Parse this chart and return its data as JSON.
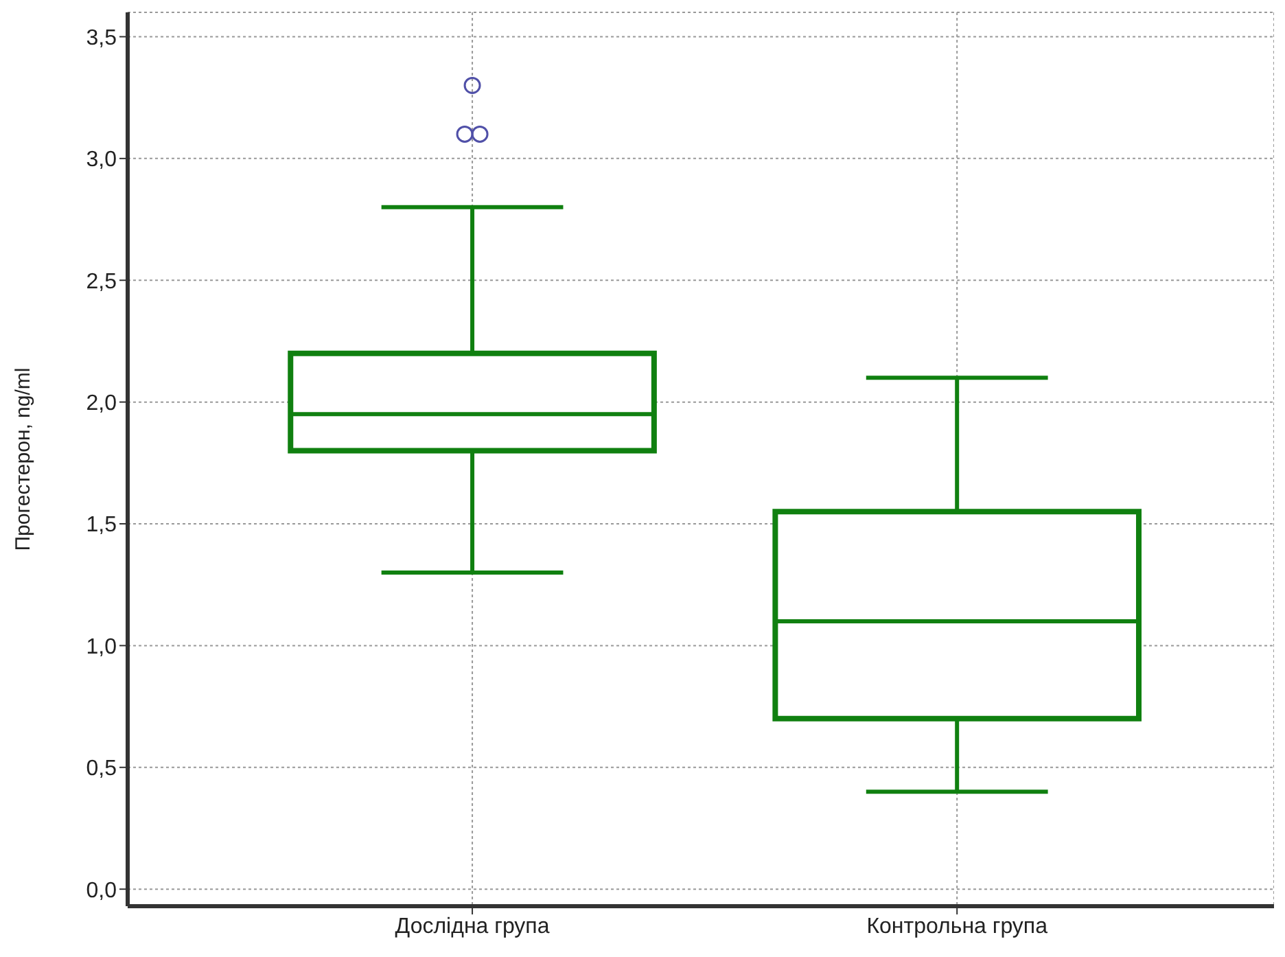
{
  "chart_data": {
    "type": "box",
    "ylabel": "Прогестерон, ng/ml",
    "categories": [
      "Дослідна група",
      "Контрольна група"
    ],
    "series": [
      {
        "color": "#108010",
        "boxes": [
          {
            "low": 1.3,
            "q1": 1.8,
            "median": 1.95,
            "q3": 2.2,
            "high": 2.8,
            "outliers": [
              3.3,
              3.1,
              3.1
            ]
          },
          {
            "low": 0.4,
            "q1": 0.7,
            "median": 1.1,
            "q3": 1.55,
            "high": 2.1
          }
        ]
      }
    ],
    "ylim": [
      -0.07,
      3.6
    ],
    "yticks": [
      {
        "value": 0,
        "label": "0,0"
      },
      {
        "value": 0.5,
        "label": "0,5"
      },
      {
        "value": 1,
        "label": "1,0"
      },
      {
        "value": 1.5,
        "label": "1,5"
      },
      {
        "value": 2,
        "label": "2,0"
      },
      {
        "value": 2.5,
        "label": "2,5"
      },
      {
        "value": 3,
        "label": "3,0"
      },
      {
        "value": 3.5,
        "label": "3,5"
      }
    ],
    "grid": true
  }
}
